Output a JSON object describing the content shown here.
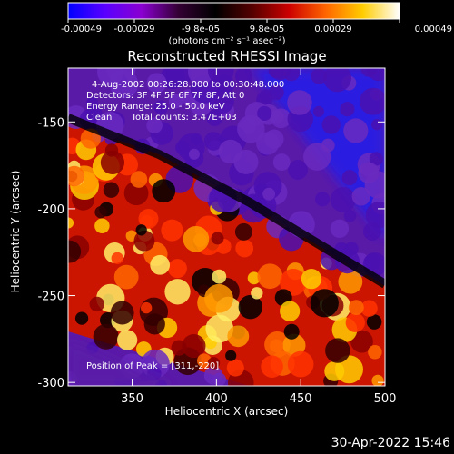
{
  "chart_data": {
    "type": "heatmap",
    "title": "Reconstructed RHESSI Image",
    "xlabel": "Heliocentric X (arcsec)",
    "ylabel": "Heliocentric Y (arcsec)",
    "xlim": [
      312,
      500
    ],
    "ylim": [
      -302,
      -119
    ],
    "x_ticks": [
      "350",
      "400",
      "450",
      "500"
    ],
    "x_tick_values": [
      350,
      400,
      450,
      500
    ],
    "y_ticks": [
      "-150",
      "-200",
      "-250",
      "-300"
    ],
    "y_tick_values": [
      -150,
      -200,
      -250,
      -300
    ],
    "colorbar": {
      "ticks": [
        "-0.00049",
        "-0.00029",
        "-9.8e-05",
        "9.8e-05",
        "0.00029",
        "0.00049"
      ],
      "units_text": "(photons cm⁻² s⁻¹ asec⁻²)",
      "range": [
        -0.00049,
        0.00049
      ]
    },
    "annotations": {
      "time_range": "4-Aug-2002 00:26:28.000 to 00:30:48.000",
      "detectors": "Detectors: 3F 4F 5F 6F 7F 8F, Att 0",
      "energy": "Energy Range: 25.0 - 50.0 keV",
      "clean": "Clean",
      "counts": "Total counts: 3.47E+03",
      "peak": "Position of Peak = [311,-220]"
    },
    "colormap_stops": [
      "#0000ff",
      "#5a00ff",
      "#8a00d0",
      "#330033",
      "#000000",
      "#550000",
      "#cc0000",
      "#ff6600",
      "#ffcc00",
      "#ffffff"
    ]
  },
  "footer": {
    "timestamp": "30-Apr-2022 15:46"
  }
}
